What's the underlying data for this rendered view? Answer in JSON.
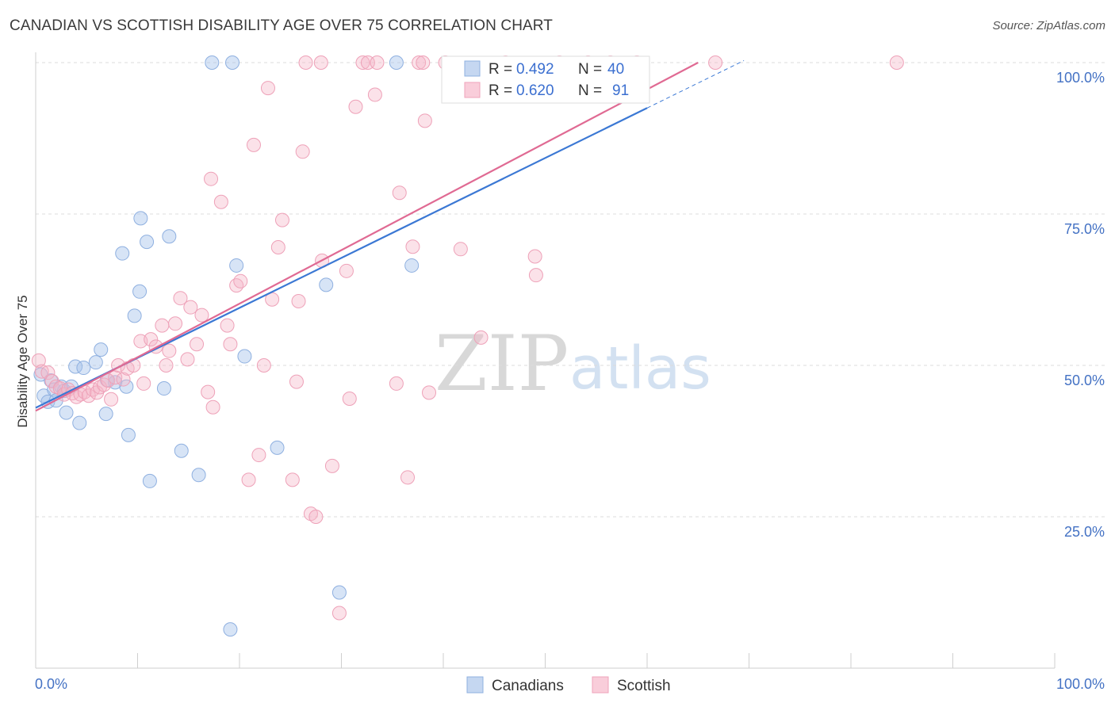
{
  "header": {
    "title": "CANADIAN VS SCOTTISH DISABILITY AGE OVER 75 CORRELATION CHART",
    "source": "Source: ZipAtlas.com"
  },
  "watermark": {
    "zip": "ZIP",
    "atlas": "atlas"
  },
  "legend": {
    "series": [
      {
        "r_label": "R = ",
        "r_value": "0.492",
        "n_label": "N = ",
        "n_value": "40"
      },
      {
        "r_label": "R = ",
        "r_value": "0.620",
        "n_label": "N = ",
        "n_value": "91"
      }
    ]
  },
  "chart_data": {
    "type": "scatter",
    "title": "CANADIAN VS SCOTTISH DISABILITY AGE OVER 75 CORRELATION CHART",
    "xlabel": "",
    "ylabel": "Disability Age Over 75",
    "xlim": [
      0,
      100
    ],
    "ylim": [
      0,
      100
    ],
    "x_tick_labels": [
      "0.0%",
      "100.0%"
    ],
    "y_ticks": [
      25,
      50,
      75,
      100
    ],
    "y_tick_labels": [
      "25.0%",
      "50.0%",
      "75.0%",
      "100.0%"
    ],
    "grid": true,
    "colors": {
      "canadians": "#a7c3ea",
      "canadians_line": "#3b78d4",
      "scottish": "#f4b6c9",
      "scottish_line": "#e06a93"
    },
    "series": [
      {
        "name": "Canadians",
        "r": 0.492,
        "n": 40,
        "trend": {
          "x0": 0,
          "y0": 43.0,
          "x1": 60,
          "y1": 92.5,
          "dash_to_x": 69.5
        },
        "points": [
          [
            0.5,
            48.5
          ],
          [
            0.8,
            45
          ],
          [
            1.2,
            44
          ],
          [
            1.5,
            47.5
          ],
          [
            1.8,
            46
          ],
          [
            2,
            44.2
          ],
          [
            2.5,
            46.5
          ],
          [
            2.8,
            45.8
          ],
          [
            3,
            42.2
          ],
          [
            3.5,
            46.5
          ],
          [
            3.9,
            49.8
          ],
          [
            4.3,
            40.5
          ],
          [
            4.7,
            49.6
          ],
          [
            5.9,
            50.5
          ],
          [
            6.4,
            52.6
          ],
          [
            6.9,
            42
          ],
          [
            7,
            47.6
          ],
          [
            7.8,
            47.2
          ],
          [
            8.5,
            68.5
          ],
          [
            8.9,
            46.5
          ],
          [
            9.1,
            38.5
          ],
          [
            9.7,
            58.2
          ],
          [
            10.2,
            62.2
          ],
          [
            10.3,
            74.3
          ],
          [
            10.9,
            70.4
          ],
          [
            11.2,
            30.9
          ],
          [
            12.6,
            46.2
          ],
          [
            13.1,
            71.3
          ],
          [
            14.3,
            35.9
          ],
          [
            16,
            31.9
          ],
          [
            17.3,
            100
          ],
          [
            19.1,
            6.4
          ],
          [
            19.3,
            100
          ],
          [
            19.7,
            66.5
          ],
          [
            20.5,
            51.5
          ],
          [
            23.7,
            36.4
          ],
          [
            28.5,
            63.3
          ],
          [
            29.8,
            12.5
          ],
          [
            35.4,
            100
          ],
          [
            36.9,
            66.5
          ]
        ]
      },
      {
        "name": "Scottish",
        "r": 0.62,
        "n": 91,
        "trend": {
          "x0": 0,
          "y0": 42.5,
          "x1": 65,
          "y1": 100
        },
        "points": [
          [
            0.3,
            50.8
          ],
          [
            0.6,
            49
          ],
          [
            1.2,
            48.8
          ],
          [
            1.6,
            47.4
          ],
          [
            2,
            46.5
          ],
          [
            2.4,
            46.2
          ],
          [
            2.8,
            45.2
          ],
          [
            3.2,
            46
          ],
          [
            3.6,
            45.4
          ],
          [
            4,
            44.8
          ],
          [
            4.4,
            45.2
          ],
          [
            4.8,
            45.6
          ],
          [
            5.2,
            45
          ],
          [
            5.6,
            46
          ],
          [
            6,
            45.5
          ],
          [
            6.3,
            46.4
          ],
          [
            6.7,
            46.8
          ],
          [
            7.1,
            47.5
          ],
          [
            7.4,
            44.4
          ],
          [
            7.8,
            48
          ],
          [
            8.1,
            50
          ],
          [
            8.6,
            47.7
          ],
          [
            9,
            49.5
          ],
          [
            9.6,
            50
          ],
          [
            10.3,
            54
          ],
          [
            10.6,
            47
          ],
          [
            11.3,
            54.3
          ],
          [
            11.8,
            53.1
          ],
          [
            12.4,
            56.6
          ],
          [
            12.8,
            50
          ],
          [
            13.1,
            52.4
          ],
          [
            13.7,
            56.9
          ],
          [
            14.2,
            61.1
          ],
          [
            14.9,
            51
          ],
          [
            15.2,
            59.6
          ],
          [
            15.8,
            53.5
          ],
          [
            16.3,
            58.3
          ],
          [
            16.9,
            45.6
          ],
          [
            17.2,
            80.8
          ],
          [
            17.4,
            43.1
          ],
          [
            18.2,
            77
          ],
          [
            18.8,
            56.6
          ],
          [
            19.1,
            53.5
          ],
          [
            19.7,
            63.2
          ],
          [
            20.1,
            63.9
          ],
          [
            20.9,
            31.1
          ],
          [
            21.4,
            86.4
          ],
          [
            21.9,
            35.2
          ],
          [
            22.4,
            50
          ],
          [
            22.8,
            95.8
          ],
          [
            23.2,
            60.9
          ],
          [
            23.8,
            69.5
          ],
          [
            24.2,
            74
          ],
          [
            25.2,
            31.1
          ],
          [
            25.6,
            47.3
          ],
          [
            25.8,
            60.6
          ],
          [
            26.2,
            85.3
          ],
          [
            26.5,
            100
          ],
          [
            27,
            25.5
          ],
          [
            27.5,
            25
          ],
          [
            28,
            100
          ],
          [
            28.1,
            67.3
          ],
          [
            29.1,
            33.4
          ],
          [
            29.8,
            9.1
          ],
          [
            30.5,
            65.6
          ],
          [
            30.8,
            44.5
          ],
          [
            31.4,
            92.7
          ],
          [
            32.1,
            100
          ],
          [
            32.6,
            100
          ],
          [
            33.3,
            94.7
          ],
          [
            33.5,
            100
          ],
          [
            35.4,
            47
          ],
          [
            35.7,
            78.5
          ],
          [
            36.5,
            31.5
          ],
          [
            37,
            69.6
          ],
          [
            37.6,
            100
          ],
          [
            38,
            100
          ],
          [
            38.2,
            90.4
          ],
          [
            38.6,
            45.5
          ],
          [
            40.2,
            100
          ],
          [
            41.7,
            69.2
          ],
          [
            43.7,
            54.6
          ],
          [
            46.1,
            100
          ],
          [
            49,
            68
          ],
          [
            49.1,
            64.9
          ],
          [
            51.4,
            100
          ],
          [
            54.2,
            100
          ],
          [
            56.4,
            100
          ],
          [
            59,
            100
          ],
          [
            66.7,
            100
          ],
          [
            84.5,
            100
          ]
        ]
      }
    ]
  }
}
